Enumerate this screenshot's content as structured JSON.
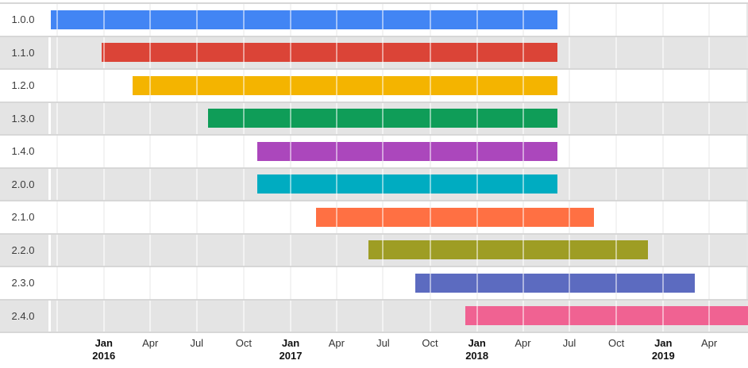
{
  "chart_data": {
    "type": "timeline",
    "title": "",
    "xlabel": "",
    "ylabel": "",
    "legend": "none",
    "grid": true,
    "row_stripe_colors": [
      "#ffffff",
      "#e4e4e4"
    ],
    "gridline_color": "#e6e6e6",
    "row_border_color": "#d7d7d7",
    "label_text_color": "#3c3c3c",
    "axis_text_color": "#333333",
    "x_axis": {
      "min": "2015-09-16",
      "max": "2019-06-16",
      "ticks": [
        {
          "date": "2015-10-01",
          "label": "",
          "year": "",
          "major": false
        },
        {
          "date": "2016-01-01",
          "label": "Jan",
          "year": "2016",
          "major": true
        },
        {
          "date": "2016-04-01",
          "label": "Apr",
          "year": "",
          "major": false
        },
        {
          "date": "2016-07-01",
          "label": "Jul",
          "year": "",
          "major": false
        },
        {
          "date": "2016-10-01",
          "label": "Oct",
          "year": "",
          "major": false
        },
        {
          "date": "2017-01-01",
          "label": "Jan",
          "year": "2017",
          "major": true
        },
        {
          "date": "2017-04-01",
          "label": "Apr",
          "year": "",
          "major": false
        },
        {
          "date": "2017-07-01",
          "label": "Jul",
          "year": "",
          "major": false
        },
        {
          "date": "2017-10-01",
          "label": "Oct",
          "year": "",
          "major": false
        },
        {
          "date": "2018-01-01",
          "label": "Jan",
          "year": "2018",
          "major": true
        },
        {
          "date": "2018-04-01",
          "label": "Apr",
          "year": "",
          "major": false
        },
        {
          "date": "2018-07-01",
          "label": "Jul",
          "year": "",
          "major": false
        },
        {
          "date": "2018-10-01",
          "label": "Oct",
          "year": "",
          "major": false
        },
        {
          "date": "2019-01-01",
          "label": "Jan",
          "year": "2019",
          "major": true
        },
        {
          "date": "2019-04-01",
          "label": "Apr",
          "year": "",
          "major": false
        }
      ]
    },
    "rows": [
      {
        "label": "1.0.0",
        "color": "#4285F4",
        "start": "2015-09-16",
        "end": "2018-06-07"
      },
      {
        "label": "1.1.0",
        "color": "#DB4437",
        "start": "2015-12-27",
        "end": "2018-06-07"
      },
      {
        "label": "1.2.0",
        "color": "#F4B400",
        "start": "2016-02-27",
        "end": "2018-06-07"
      },
      {
        "label": "1.3.0",
        "color": "#0F9D58",
        "start": "2016-07-23",
        "end": "2018-06-07"
      },
      {
        "label": "1.4.0",
        "color": "#AB47BC",
        "start": "2016-10-27",
        "end": "2018-06-07"
      },
      {
        "label": "2.0.0",
        "color": "#00ACC1",
        "start": "2016-10-27",
        "end": "2018-06-07"
      },
      {
        "label": "2.1.0",
        "color": "#FF7043",
        "start": "2017-02-19",
        "end": "2018-08-18"
      },
      {
        "label": "2.2.0",
        "color": "#9E9D24",
        "start": "2017-06-02",
        "end": "2018-12-02"
      },
      {
        "label": "2.3.0",
        "color": "#5C6BC0",
        "start": "2017-09-02",
        "end": "2019-03-04"
      },
      {
        "label": "2.4.0",
        "color": "#F06292",
        "start": "2017-12-09",
        "end": "2019-06-16"
      }
    ]
  }
}
